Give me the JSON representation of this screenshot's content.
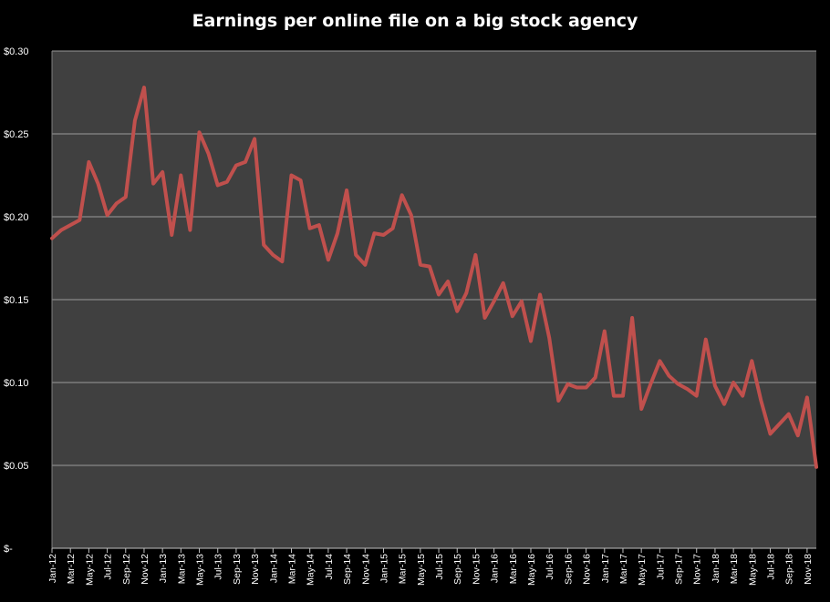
{
  "chart_data": {
    "type": "line",
    "title": "Earnings per online file on a big stock agency",
    "xlabel": "",
    "ylabel": "",
    "ylim": [
      0,
      0.3
    ],
    "y_ticks": [
      {
        "value": 0,
        "label": "$-"
      },
      {
        "value": 0.05,
        "label": "$0.05"
      },
      {
        "value": 0.1,
        "label": "$0.10"
      },
      {
        "value": 0.15,
        "label": "$0.15"
      },
      {
        "value": 0.2,
        "label": "$0.20"
      },
      {
        "value": 0.25,
        "label": "$0.25"
      },
      {
        "value": 0.3,
        "label": "$0.30"
      }
    ],
    "x_tick_labels": [
      "Jan-12",
      "Mar-12",
      "May-12",
      "Jul-12",
      "Sep-12",
      "Nov-12",
      "Jan-13",
      "Mar-13",
      "May-13",
      "Jul-13",
      "Sep-13",
      "Nov-13",
      "Jan-14",
      "Mar-14",
      "May-14",
      "Jul-14",
      "Sep-14",
      "Nov-14",
      "Jan-15",
      "Mar-15",
      "May-15",
      "Jul-15",
      "Sep-15",
      "Nov-15",
      "Jan-16",
      "Mar-16",
      "May-16",
      "Jul-16",
      "Sep-16",
      "Nov-16",
      "Jan-17",
      "Mar-17",
      "May-17",
      "Jul-17",
      "Sep-17",
      "Nov-17",
      "Jan-18",
      "Mar-18",
      "May-18",
      "Jul-18",
      "Sep-18",
      "Nov-18"
    ],
    "grid": true,
    "colors": {
      "background": "#000000",
      "plot_area": "#404040",
      "gridline": "#9a9a9a",
      "line": "#c0504d",
      "text": "#ffffff"
    },
    "series": [
      {
        "x": [
          "Jan-12",
          "Feb-12",
          "Mar-12",
          "Apr-12",
          "May-12",
          "Jun-12",
          "Jul-12",
          "Aug-12",
          "Sep-12",
          "Oct-12",
          "Nov-12",
          "Dec-12",
          "Jan-13",
          "Feb-13",
          "Mar-13",
          "Apr-13",
          "May-13",
          "Jun-13",
          "Jul-13",
          "Aug-13",
          "Sep-13",
          "Oct-13",
          "Nov-13",
          "Dec-13",
          "Jan-14",
          "Feb-14",
          "Mar-14",
          "Apr-14",
          "May-14",
          "Jun-14",
          "Jul-14",
          "Aug-14",
          "Sep-14",
          "Oct-14",
          "Nov-14",
          "Dec-14",
          "Jan-15",
          "Feb-15",
          "Mar-15",
          "Apr-15",
          "May-15",
          "Jun-15",
          "Jul-15",
          "Aug-15",
          "Sep-15",
          "Oct-15",
          "Nov-15",
          "Dec-15",
          "Jan-16",
          "Feb-16",
          "Mar-16",
          "Apr-16",
          "May-16",
          "Jun-16",
          "Jul-16",
          "Aug-16",
          "Sep-16",
          "Oct-16",
          "Nov-16",
          "Dec-16",
          "Jan-17",
          "Feb-17",
          "Mar-17",
          "Apr-17",
          "May-17",
          "Jun-17",
          "Jul-17",
          "Aug-17",
          "Sep-17",
          "Oct-17",
          "Nov-17",
          "Dec-17",
          "Jan-18",
          "Feb-18",
          "Mar-18",
          "Apr-18",
          "May-18",
          "Jun-18",
          "Jul-18",
          "Aug-18",
          "Sep-18",
          "Oct-18",
          "Nov-18",
          "Dec-18"
        ],
        "values": [
          0.187,
          0.192,
          0.195,
          0.198,
          0.233,
          0.22,
          0.201,
          0.208,
          0.212,
          0.258,
          0.278,
          0.22,
          0.227,
          0.189,
          0.225,
          0.192,
          0.251,
          0.238,
          0.219,
          0.221,
          0.231,
          0.233,
          0.247,
          0.183,
          0.177,
          0.173,
          0.225,
          0.222,
          0.193,
          0.195,
          0.174,
          0.19,
          0.216,
          0.177,
          0.171,
          0.19,
          0.189,
          0.193,
          0.213,
          0.201,
          0.171,
          0.17,
          0.153,
          0.161,
          0.143,
          0.154,
          0.177,
          0.139,
          0.149,
          0.16,
          0.14,
          0.149,
          0.125,
          0.153,
          0.127,
          0.089,
          0.099,
          0.097,
          0.097,
          0.103,
          0.131,
          0.092,
          0.092,
          0.139,
          0.084,
          0.099,
          0.113,
          0.104,
          0.099,
          0.096,
          0.092,
          0.126,
          0.098,
          0.087,
          0.1,
          0.092,
          0.113,
          0.089,
          0.069,
          0.075,
          0.081,
          0.068,
          0.091,
          0.049
        ]
      }
    ]
  }
}
